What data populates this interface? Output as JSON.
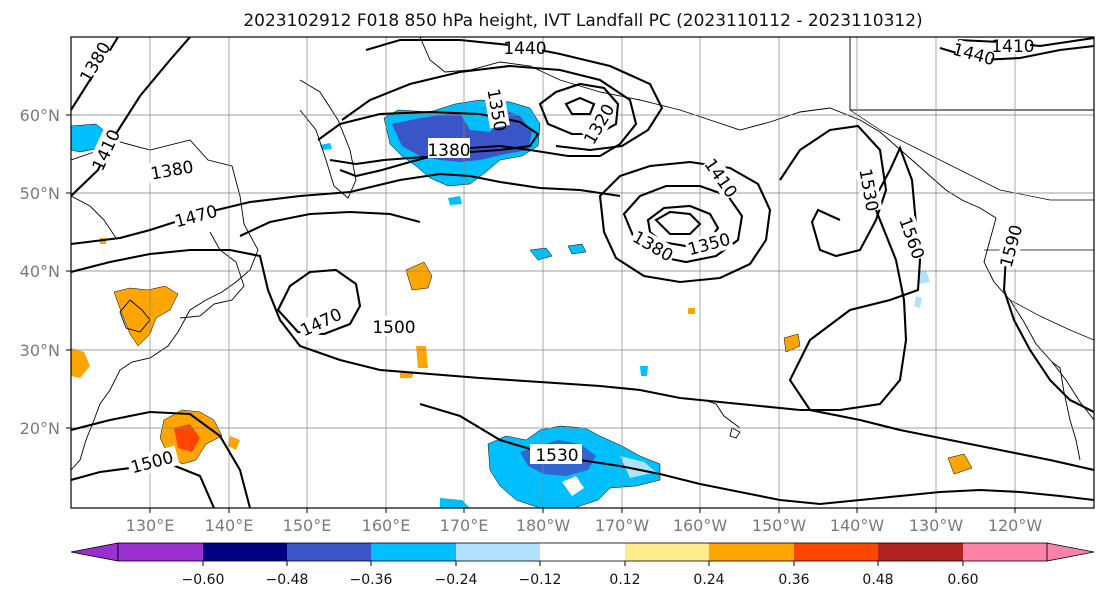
{
  "title": "2023102912 F018 850 hPa height, IVT Landfall PC (2023110112 - 2023110312)",
  "lat_labels": [
    "60°N",
    "50°N",
    "40°N",
    "30°N",
    "20°N"
  ],
  "lon_labels": [
    "130°E",
    "140°E",
    "150°E",
    "160°E",
    "170°E",
    "180°W",
    "170°W",
    "160°W",
    "150°W",
    "140°W",
    "130°W",
    "120°W"
  ],
  "colorbar": {
    "ticks": [
      "−0.60",
      "−0.48",
      "−0.36",
      "−0.24",
      "−0.12",
      "0.12",
      "0.24",
      "0.36",
      "0.48",
      "0.60"
    ],
    "colors": [
      "#9b30d0",
      "#000080",
      "#3a55c8",
      "#00bfff",
      "#b0e2ff",
      "#ffffff",
      "#ffec8b",
      "#ffa500",
      "#ff4500",
      "#b22222",
      "#ff82ab"
    ]
  },
  "contour_labels": [
    "1380",
    "1440",
    "1410",
    "1440",
    "1410",
    "1350",
    "1320",
    "1380",
    "1380",
    "1470",
    "1410",
    "1530",
    "1560",
    "1590",
    "1380",
    "1350",
    "1470",
    "1500",
    "1530",
    "1500"
  ]
}
